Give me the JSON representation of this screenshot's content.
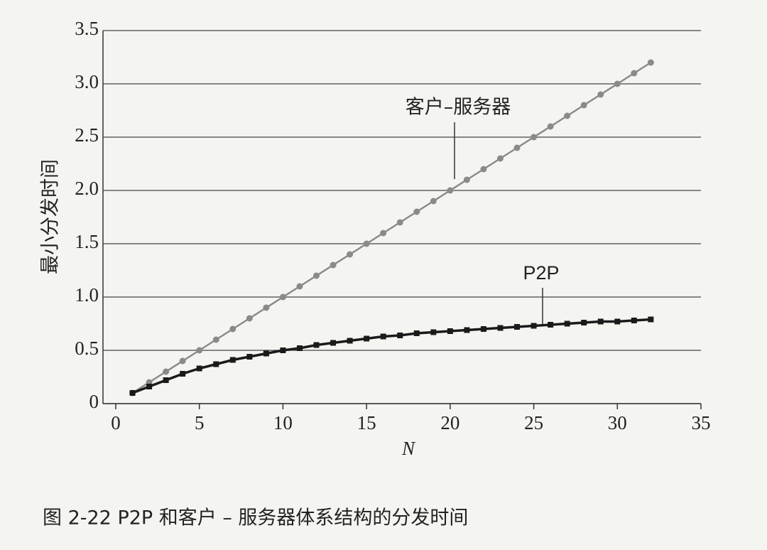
{
  "chart_data": {
    "type": "line",
    "caption": "图 2-22    P2P 和客户 – 服务器体系结构的分发时间",
    "xlabel": "N",
    "ylabel": "最小分发时间",
    "x": [
      1,
      2,
      3,
      4,
      5,
      6,
      7,
      8,
      9,
      10,
      11,
      12,
      13,
      14,
      15,
      16,
      17,
      18,
      19,
      20,
      21,
      22,
      23,
      24,
      25,
      26,
      27,
      28,
      29,
      30,
      31,
      32
    ],
    "series": [
      {
        "name": "客户–服务器",
        "color": "#8a8a8a",
        "marker": "circle",
        "values": [
          0.1,
          0.2,
          0.3,
          0.4,
          0.5,
          0.6,
          0.7,
          0.8,
          0.9,
          1.0,
          1.1,
          1.2,
          1.3,
          1.4,
          1.5,
          1.6,
          1.7,
          1.8,
          1.9,
          2.0,
          2.1,
          2.2,
          2.3,
          2.4,
          2.5,
          2.6,
          2.7,
          2.8,
          2.9,
          3.0,
          3.1,
          3.2
        ]
      },
      {
        "name": "P2P",
        "color": "#1a1a1a",
        "marker": "square",
        "values": [
          0.1,
          0.16,
          0.22,
          0.28,
          0.33,
          0.37,
          0.41,
          0.44,
          0.47,
          0.5,
          0.52,
          0.55,
          0.57,
          0.59,
          0.61,
          0.63,
          0.64,
          0.66,
          0.67,
          0.68,
          0.69,
          0.7,
          0.71,
          0.72,
          0.73,
          0.74,
          0.75,
          0.76,
          0.77,
          0.77,
          0.78,
          0.79
        ]
      }
    ],
    "xlim": [
      0,
      35
    ],
    "xticks": [
      0,
      5,
      10,
      15,
      20,
      25,
      30,
      35
    ],
    "ylim": [
      0,
      3.5
    ],
    "yticks": [
      0,
      0.5,
      {
        "value": 1,
        "label": "1.0"
      },
      1.5,
      {
        "value": 2,
        "label": "2.0"
      },
      2.5,
      {
        "value": 3,
        "label": "3.0"
      },
      3.5
    ],
    "grid": true
  }
}
